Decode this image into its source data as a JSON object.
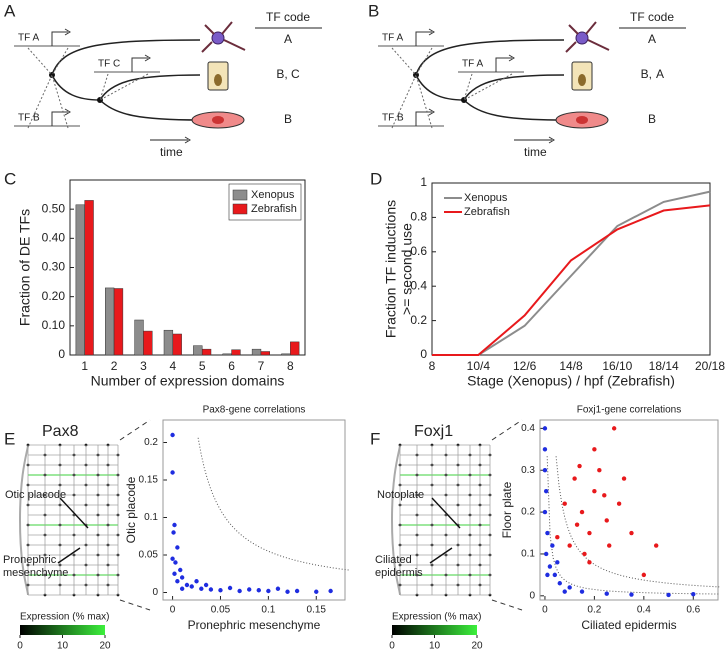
{
  "panel_labels": [
    "A",
    "B",
    "C",
    "D",
    "E",
    "F"
  ],
  "diagrams": [
    {
      "header": "TF code",
      "time": "time",
      "tfs": [
        {
          "label": "TF A",
          "color": "#333333"
        },
        {
          "label": "TF C",
          "color": "#333333"
        },
        {
          "label": "TF B",
          "color": "#333333"
        }
      ],
      "codes": [
        {
          "text": "A"
        },
        {
          "text": "B, C"
        },
        {
          "text": "B"
        }
      ]
    },
    {
      "header": "TF code",
      "time": "time",
      "tfs": [
        {
          "label": "TF A",
          "color": "#333333"
        },
        {
          "label": "TF A",
          "color": "#e8191c"
        },
        {
          "label": "TF B",
          "color": "#333333"
        }
      ],
      "codes": [
        {
          "text": "A"
        },
        {
          "text": "B,",
          "extra": "A",
          "extra_color": "#e8191c"
        },
        {
          "text": "B"
        }
      ]
    }
  ],
  "lineage_panels": [
    {
      "gene": "Pax8",
      "annotations": [
        [
          "Otic placode"
        ],
        [
          "Pronephric",
          "mesenchyme"
        ]
      ],
      "colorbar": {
        "label": "Expression (% max)",
        "ticks": [
          0,
          10,
          20
        ]
      }
    },
    {
      "gene": "Foxj1",
      "annotations": [
        [
          "Notoplate"
        ],
        [
          "Ciliated",
          "epidermis"
        ]
      ],
      "colorbar": {
        "label": "Expression (% max)",
        "ticks": [
          0,
          10,
          20
        ]
      }
    }
  ],
  "chart_data": [
    {
      "type": "bar",
      "xlabel": "Number of expression domains",
      "ylabel": [
        "Fraction of DE TFs"
      ],
      "categories": [
        "1",
        "2",
        "3",
        "4",
        "5",
        "6",
        "7",
        "8"
      ],
      "series": [
        {
          "name": "Xenopus",
          "color": "#8c8c8c",
          "values": [
            0.515,
            0.23,
            0.12,
            0.085,
            0.032,
            0.004,
            0.02,
            0.004
          ]
        },
        {
          "name": "Zebrafish",
          "color": "#e8191c",
          "values": [
            0.53,
            0.228,
            0.082,
            0.072,
            0.02,
            0.018,
            0.012,
            0.045
          ]
        }
      ],
      "ylim": [
        0,
        0.6
      ],
      "yticks": [
        0,
        {
          "value": 0.1,
          "label": "0.10"
        },
        {
          "value": 0.2,
          "label": "0.20"
        },
        {
          "value": 0.3,
          "label": "0.30"
        },
        {
          "value": 0.4,
          "label": "0.40"
        },
        {
          "value": 0.5,
          "label": "0.50"
        }
      ],
      "legend": "upper right"
    },
    {
      "type": "line",
      "xlabel": "Stage (Xenopus) / hpf (Zebrafish)",
      "ylabel": [
        "Fraction TF inductions",
        ">= second use"
      ],
      "categories": [
        "8",
        "10/4",
        "12/6",
        "14/8",
        "16/10",
        "18/14",
        "20/18"
      ],
      "series": [
        {
          "name": "Xenopus",
          "color": "#8c8c8c",
          "values": [
            0,
            0,
            0.17,
            0.46,
            0.75,
            0.89,
            0.95
          ]
        },
        {
          "name": "Zebrafish",
          "color": "#e8191c",
          "values": [
            0,
            0,
            0.23,
            0.55,
            0.73,
            0.84,
            0.87
          ]
        }
      ],
      "ylim": [
        0,
        1
      ],
      "yticks": [
        0,
        0.2,
        0.4,
        0.6,
        0.8,
        1
      ],
      "legend": "upper left"
    },
    {
      "type": "scatter",
      "title": "Pax8-gene correlations",
      "xlabel": "Pronephric mesenchyme",
      "ylabel": [
        "Otic placode"
      ],
      "xlim": [
        -0.01,
        0.18
      ],
      "xticks": [
        0,
        0.05,
        0.1,
        0.15
      ],
      "ylim": [
        -0.01,
        0.23
      ],
      "yticks": [
        0,
        0.05,
        0.1,
        0.15,
        0.2
      ],
      "series": [
        {
          "color": "#1f2de0",
          "x": [
            0,
            0,
            0.002,
            0.001,
            0.005,
            0,
            0.003,
            0.008,
            0.002,
            0.01,
            0.005,
            0.015,
            0.02,
            0.03,
            0.04,
            0.05,
            0.06,
            0.07,
            0.08,
            0.09,
            0.1,
            0.11,
            0.12,
            0.13,
            0.15,
            0.165,
            0.025,
            0.01,
            0.035
          ],
          "y": [
            0.21,
            0.16,
            0.09,
            0.08,
            0.06,
            0.045,
            0.04,
            0.03,
            0.025,
            0.02,
            0.015,
            0.01,
            0.008,
            0.005,
            0.004,
            0.003,
            0.006,
            0.002,
            0.004,
            0.003,
            0.002,
            0.005,
            0.001,
            0.002,
            0.001,
            0.002,
            0.015,
            0.005,
            0.01
          ]
        }
      ]
    },
    {
      "type": "scatter",
      "title": "Foxj1-gene correlations",
      "xlabel": "Ciliated epidermis",
      "ylabel": [
        "Floor plate"
      ],
      "xlim": [
        -0.02,
        0.7
      ],
      "xticks": [
        0,
        0.2,
        0.4,
        0.6
      ],
      "ylim": [
        -0.01,
        0.42
      ],
      "yticks": [
        0,
        0.1,
        0.2,
        0.3,
        0.4
      ],
      "series": [
        {
          "color": "#1f2de0",
          "x": [
            0,
            0,
            0,
            0.005,
            0,
            0.01,
            0.005,
            0.02,
            0.04,
            0.06,
            0.1,
            0.15,
            0.25,
            0.35,
            0.5,
            0.6,
            0.08,
            0.03,
            0.01,
            0.05
          ],
          "y": [
            0.4,
            0.35,
            0.3,
            0.25,
            0.2,
            0.15,
            0.1,
            0.07,
            0.05,
            0.03,
            0.02,
            0.01,
            0.005,
            0.003,
            0.002,
            0.004,
            0.01,
            0.12,
            0.05,
            0.08
          ]
        },
        {
          "color": "#e8191c",
          "x": [
            0.12,
            0.15,
            0.2,
            0.18,
            0.25,
            0.1,
            0.22,
            0.3,
            0.28,
            0.16,
            0.08,
            0.35,
            0.4,
            0.2,
            0.13,
            0.26,
            0.05,
            0.32,
            0.45,
            0.18,
            0.24,
            0.14
          ],
          "y": [
            0.28,
            0.2,
            0.25,
            0.15,
            0.18,
            0.12,
            0.3,
            0.22,
            0.4,
            0.1,
            0.22,
            0.15,
            0.05,
            0.35,
            0.17,
            0.12,
            0.14,
            0.28,
            0.12,
            0.08,
            0.24,
            0.31
          ]
        }
      ]
    }
  ]
}
